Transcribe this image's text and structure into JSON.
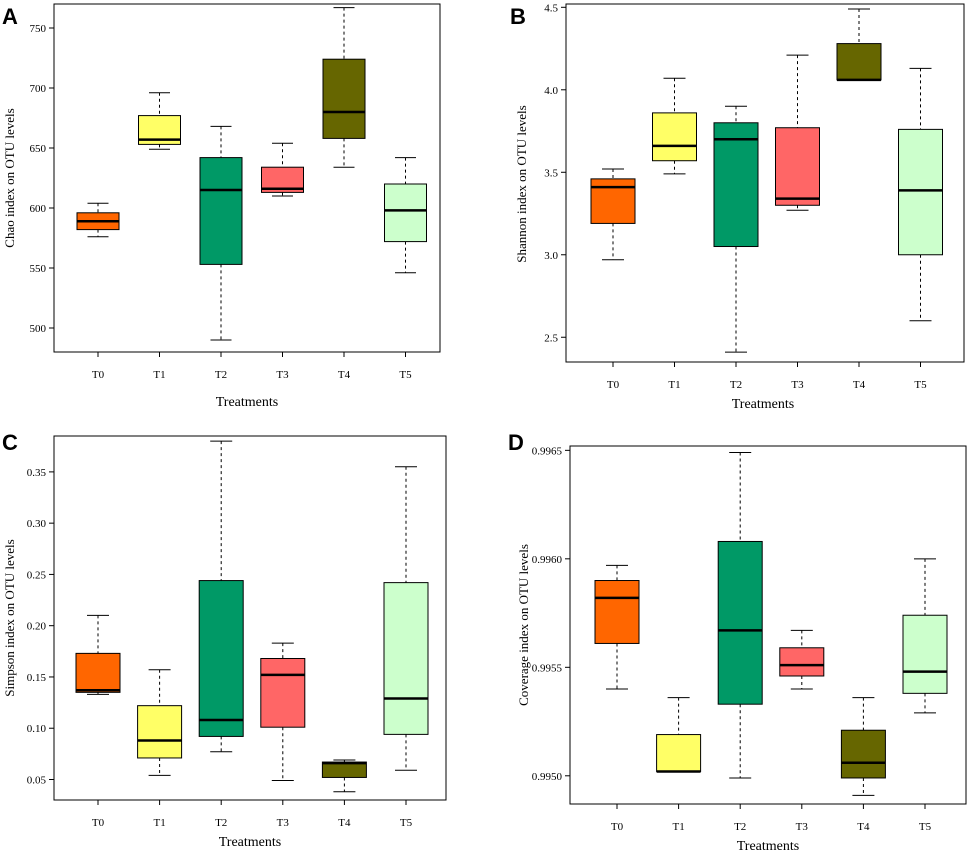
{
  "colors": {
    "T0": "#ff6600",
    "T1": "#ffff66",
    "T2": "#009966",
    "T3": "#ff6666",
    "T4": "#666600",
    "T5": "#ccffcc"
  },
  "chart_data": [
    {
      "type": "box",
      "panel": "A",
      "xlabel": "Treatments",
      "ylabel": "Chao index  on OTU levels",
      "categories": [
        "T0",
        "T1",
        "T2",
        "T3",
        "T4",
        "T5"
      ],
      "ylim": [
        480,
        770
      ],
      "yticks": [
        500,
        550,
        600,
        650,
        700,
        750
      ],
      "ytick_labels": [
        "500",
        "550",
        "600",
        "650",
        "700",
        "750"
      ],
      "boxes": [
        {
          "min": 576,
          "q1": 582,
          "median": 589,
          "q3": 596,
          "max": 604
        },
        {
          "min": 649,
          "q1": 653,
          "median": 657,
          "q3": 677,
          "max": 696
        },
        {
          "min": 490,
          "q1": 553,
          "median": 615,
          "q3": 642,
          "max": 668
        },
        {
          "min": 610,
          "q1": 613,
          "median": 616,
          "q3": 634,
          "max": 654
        },
        {
          "min": 634,
          "q1": 658,
          "median": 680,
          "q3": 724,
          "max": 767
        },
        {
          "min": 546,
          "q1": 572,
          "median": 598,
          "q3": 620,
          "max": 642
        }
      ]
    },
    {
      "type": "box",
      "panel": "B",
      "xlabel": "Treatments",
      "ylabel": "Shannon index  on OTU levels",
      "categories": [
        "T0",
        "T1",
        "T2",
        "T3",
        "T4",
        "T5"
      ],
      "ylim": [
        2.35,
        4.52
      ],
      "yticks": [
        2.5,
        3.0,
        3.5,
        4.0,
        4.5
      ],
      "ytick_labels": [
        "2.5",
        "3.0",
        "3.5",
        "4.0",
        "4.5"
      ],
      "boxes": [
        {
          "min": 2.97,
          "q1": 3.19,
          "median": 3.41,
          "q3": 3.46,
          "max": 3.52
        },
        {
          "min": 3.49,
          "q1": 3.57,
          "median": 3.66,
          "q3": 3.86,
          "max": 4.07
        },
        {
          "min": 2.41,
          "q1": 3.05,
          "median": 3.7,
          "q3": 3.8,
          "max": 3.9
        },
        {
          "min": 3.27,
          "q1": 3.3,
          "median": 3.34,
          "q3": 3.77,
          "max": 4.21
        },
        {
          "min": 4.06,
          "q1": 4.06,
          "median": 4.06,
          "q3": 4.28,
          "max": 4.49
        },
        {
          "min": 2.6,
          "q1": 3.0,
          "median": 3.39,
          "q3": 3.76,
          "max": 4.13
        }
      ]
    },
    {
      "type": "box",
      "panel": "C",
      "xlabel": "Treatments",
      "ylabel": "Simpson index  on OTU levels",
      "categories": [
        "T0",
        "T1",
        "T2",
        "T3",
        "T4",
        "T5"
      ],
      "ylim": [
        0.03,
        0.385
      ],
      "yticks": [
        0.05,
        0.1,
        0.15,
        0.2,
        0.25,
        0.3,
        0.35
      ],
      "ytick_labels": [
        "0.05",
        "0.10",
        "0.15",
        "0.20",
        "0.25",
        "0.30",
        "0.35"
      ],
      "boxes": [
        {
          "min": 0.133,
          "q1": 0.135,
          "median": 0.137,
          "q3": 0.173,
          "max": 0.21
        },
        {
          "min": 0.054,
          "q1": 0.071,
          "median": 0.088,
          "q3": 0.122,
          "max": 0.157
        },
        {
          "min": 0.077,
          "q1": 0.092,
          "median": 0.108,
          "q3": 0.244,
          "max": 0.38
        },
        {
          "min": 0.049,
          "q1": 0.101,
          "median": 0.152,
          "q3": 0.168,
          "max": 0.183
        },
        {
          "min": 0.038,
          "q1": 0.052,
          "median": 0.066,
          "q3": 0.067,
          "max": 0.069
        },
        {
          "min": 0.059,
          "q1": 0.094,
          "median": 0.129,
          "q3": 0.242,
          "max": 0.355
        }
      ]
    },
    {
      "type": "box",
      "panel": "D",
      "xlabel": "Treatments",
      "ylabel": "Coverage index  on OTU levels",
      "categories": [
        "T0",
        "T1",
        "T2",
        "T3",
        "T4",
        "T5"
      ],
      "ylim": [
        0.99487,
        0.99652
      ],
      "yticks": [
        0.995,
        0.9955,
        0.996,
        0.9965
      ],
      "ytick_labels": [
        "0.9950",
        "0.9955",
        "0.9960",
        "0.9965"
      ],
      "boxes": [
        {
          "min": 0.9954,
          "q1": 0.99561,
          "median": 0.99582,
          "q3": 0.9959,
          "max": 0.99597
        },
        {
          "min": 0.99502,
          "q1": 0.99502,
          "median": 0.99502,
          "q3": 0.99519,
          "max": 0.99536
        },
        {
          "min": 0.99499,
          "q1": 0.99533,
          "median": 0.99567,
          "q3": 0.99608,
          "max": 0.99649
        },
        {
          "min": 0.9954,
          "q1": 0.99546,
          "median": 0.99551,
          "q3": 0.99559,
          "max": 0.99567
        },
        {
          "min": 0.99491,
          "q1": 0.99499,
          "median": 0.99506,
          "q3": 0.99521,
          "max": 0.99536
        },
        {
          "min": 0.99529,
          "q1": 0.99538,
          "median": 0.99548,
          "q3": 0.99574,
          "max": 0.996
        }
      ]
    }
  ]
}
